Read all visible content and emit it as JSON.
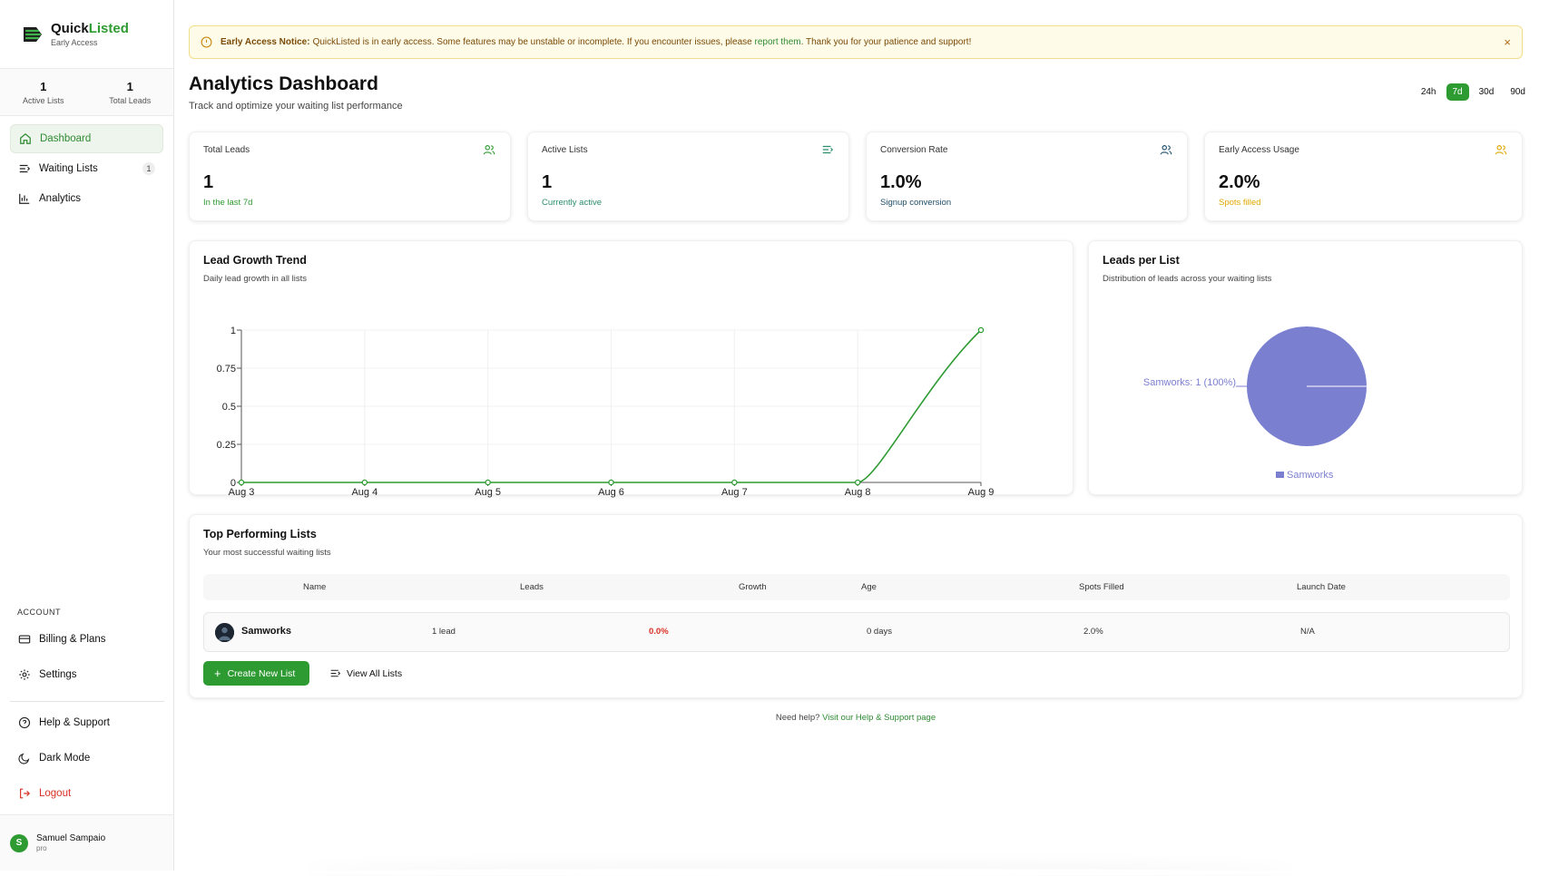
{
  "brand": {
    "name_part1": "Quick",
    "name_part2": "Listed",
    "subtitle": "Early Access",
    "accent": "#2e9b32"
  },
  "sidebar_stats": [
    {
      "value": "1",
      "label": "Active Lists"
    },
    {
      "value": "1",
      "label": "Total Leads"
    }
  ],
  "nav": [
    {
      "label": "Dashboard",
      "icon": "home-icon",
      "active": true
    },
    {
      "label": "Waiting Lists",
      "icon": "list-icon",
      "badge": "1"
    },
    {
      "label": "Analytics",
      "icon": "bar-chart-icon"
    }
  ],
  "account": {
    "section_label": "ACCOUNT",
    "items": [
      {
        "label": "Billing & Plans",
        "icon": "credit-card-icon"
      },
      {
        "label": "Settings",
        "icon": "gear-icon"
      }
    ]
  },
  "footer_nav": [
    {
      "label": "Help & Support",
      "icon": "help-circle-icon"
    },
    {
      "label": "Dark Mode",
      "icon": "moon-icon"
    },
    {
      "label": "Logout",
      "icon": "logout-icon",
      "color": "#d93025"
    }
  ],
  "user": {
    "initial": "S",
    "name": "Samuel Sampaio",
    "plan": "pro"
  },
  "notice": {
    "title": "Early Access Notice:",
    "text": "QuickListed is in early access. Some features may be unstable or incomplete. If you encounter issues, please",
    "link": "report them",
    "text_after": ". Thank you for your patience and support!",
    "close": "×"
  },
  "header": {
    "title": "Analytics Dashboard",
    "subtitle": "Track and optimize your waiting list performance"
  },
  "ranges": [
    "24h",
    "7d",
    "30d",
    "90d"
  ],
  "selected_range": "7d",
  "metrics": [
    {
      "label": "Total Leads",
      "value": "1",
      "footer": "In the last 7d",
      "footer_color": "#2e9b32",
      "icon": "users-icon",
      "icon_color": "#2e9b32"
    },
    {
      "label": "Active Lists",
      "value": "1",
      "footer": "Currently active",
      "footer_color": "#2a8c6e",
      "icon": "list-icon",
      "icon_color": "#2a8c6e"
    },
    {
      "label": "Conversion Rate",
      "value": "1.0%",
      "footer": "Signup conversion",
      "footer_color": "#1f4f6b",
      "icon": "users-icon",
      "icon_color": "#1f4f6b"
    },
    {
      "label": "Early Access Usage",
      "value": "2.0%",
      "footer": "Spots filled",
      "footer_color": "#e0a800",
      "icon": "users-icon",
      "icon_color": "#e0a800"
    }
  ],
  "lead_growth": {
    "title": "Lead Growth Trend",
    "subtitle": "Daily lead growth in all lists"
  },
  "leads_per_list": {
    "title": "Leads per List",
    "subtitle": "Distribution of leads across your waiting lists"
  },
  "chart_data": [
    {
      "type": "line",
      "x": [
        "Aug 3",
        "Aug 4",
        "Aug 5",
        "Aug 6",
        "Aug 7",
        "Aug 8",
        "Aug 9"
      ],
      "series": [
        {
          "values": [
            0,
            0,
            0,
            0,
            0,
            0,
            1
          ],
          "color": "#2e9b32"
        }
      ],
      "yticks": [
        "0",
        "0.25",
        "0.5",
        "0.75",
        "1"
      ],
      "ylim": [
        0,
        1
      ],
      "grid": true
    },
    {
      "type": "pie",
      "slices": [
        {
          "label": "Samworks",
          "value": 1,
          "percent": "100%",
          "color": "#7b7fd0"
        }
      ],
      "slice_label": "Samworks: 1 (100%)",
      "legend": "bottom"
    }
  ],
  "top_lists": {
    "title": "Top Performing Lists",
    "subtitle": "Your most successful waiting lists",
    "columns": [
      "Name",
      "Leads",
      "Growth",
      "Age",
      "Spots Filled",
      "Launch Date"
    ],
    "rows": [
      {
        "name": "Samworks",
        "leads": "1 lead",
        "growth": "0.0%",
        "growth_color": "#d93025",
        "age": "0 days",
        "spots": "2.0%",
        "launch": "N/A"
      }
    ],
    "create_button": "Create New List",
    "view_button": "View All Lists"
  },
  "help": {
    "text": "Need help?",
    "link": "Visit our Help & Support page"
  }
}
